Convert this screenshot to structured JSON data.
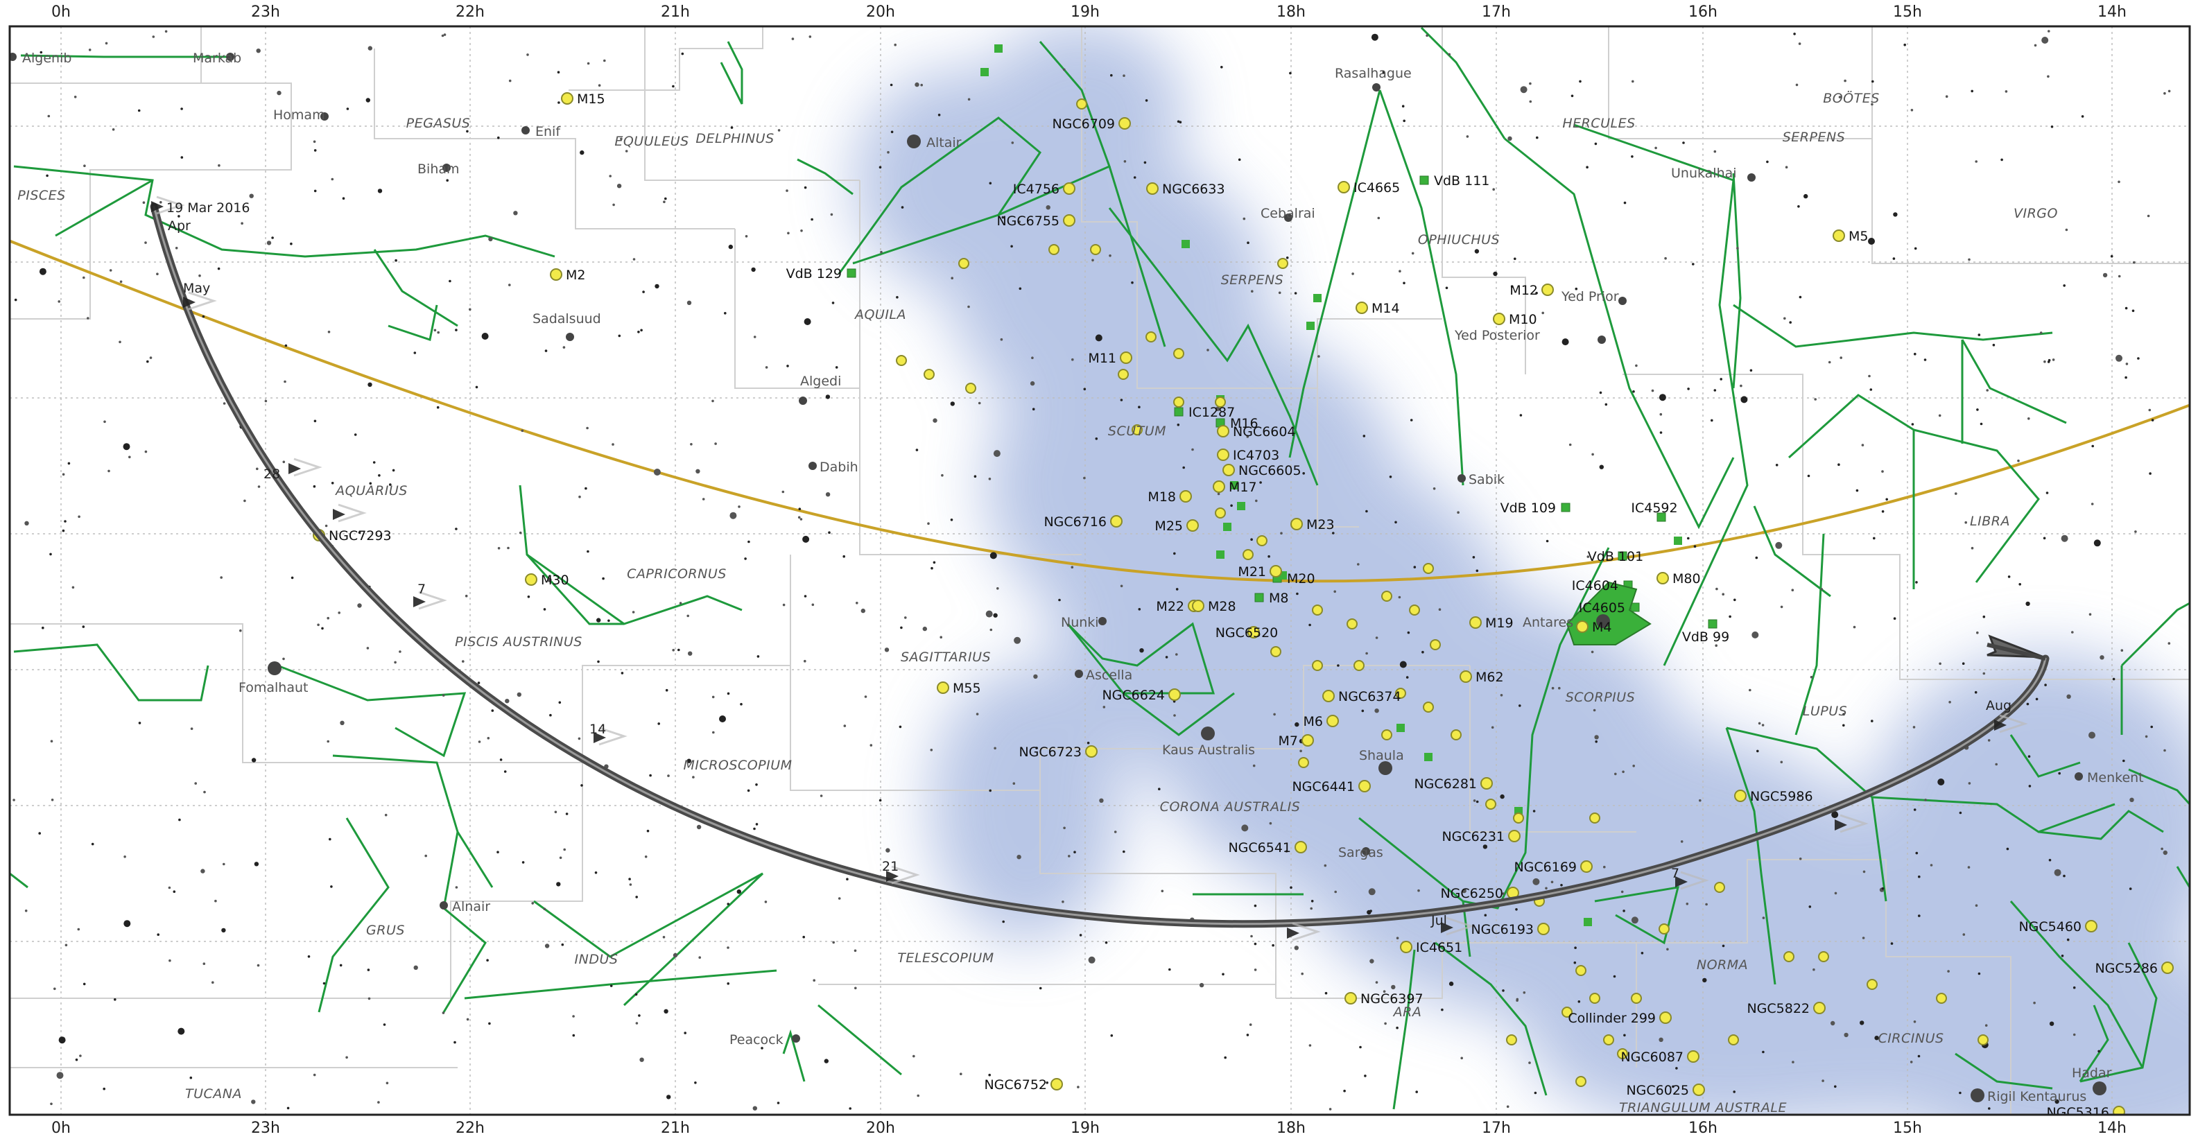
{
  "ra_axis": {
    "labels": [
      "0h",
      "23h",
      "22h",
      "21h",
      "20h",
      "19h",
      "18h",
      "17h",
      "16h",
      "15h",
      "14h"
    ]
  },
  "constellations": [
    "PISCES",
    "PEGASUS",
    "EQUULEUS",
    "DELPHINUS",
    "AQUILA",
    "SERPENS",
    "OPHIUCHUS",
    "HERCULES",
    "SERPENS",
    "BOÖTES",
    "VIRGO",
    "SCUTUM",
    "AQUARIUS",
    "CAPRICORNUS",
    "LIBRA",
    "PISCIS AUSTRINUS",
    "SAGITTARIUS",
    "SCORPIUS",
    "LUPUS",
    "MICROSCOPIUM",
    "CORONA AUSTRALIS",
    "GRUS",
    "INDUS",
    "TELESCOPIUM",
    "NORMA",
    "ARA",
    "CIRCINUS",
    "TUCANA",
    "TRIANGULUM AUSTRALE"
  ],
  "stars": [
    "Algenib",
    "Markab",
    "Homam",
    "Enif",
    "Biham",
    "Altair",
    "Rasalhague",
    "Unukalhai",
    "Cebalrai",
    "Yed Prior",
    "Yed Posterior",
    "Sadalsuud",
    "Algedi",
    "Dabih",
    "Sabik",
    "Antares",
    "Nunki",
    "Ascella",
    "Kaus Australis",
    "Fomalhaut",
    "Shaula",
    "Sargas",
    "Alnair",
    "Peacock",
    "Menkent",
    "Hadar",
    "Rigil Kentaurus"
  ],
  "dso": [
    "M15",
    "NGC6709",
    "IC4756",
    "NGC6633",
    "IC4665",
    "VdB 111",
    "M5",
    "NGC6755",
    "M2",
    "VdB 129",
    "M14",
    "M12",
    "M10",
    "M11",
    "IC1287",
    "NGC6604",
    "IC4703",
    "NGC6605",
    "M17",
    "M18",
    "M16",
    "NGC6716",
    "M25",
    "M23",
    "VdB 109",
    "IC4592",
    "NGC7293",
    "M30",
    "M21",
    "M20",
    "VdB 101",
    "IC4604",
    "M80",
    "M22",
    "M28",
    "M8",
    "IC4605",
    "M4",
    "VdB 99",
    "NGC6520",
    "M19",
    "M55",
    "M62",
    "NGC6624",
    "NGC6374",
    "M6",
    "M7",
    "NGC6723",
    "NGC6441",
    "NGC6281",
    "NGC5986",
    "NGC6231",
    "NGC6541",
    "NGC6169",
    "NGC6250",
    "NGC6193",
    "IC4651",
    "NGC5460",
    "NGC5286",
    "NGC6397",
    "NGC5822",
    "Collinder 299",
    "NGC6087",
    "NGC6752",
    "NGC6025",
    "NGC5316"
  ],
  "path": {
    "start_label": "19 Mar 2016",
    "month_labels": [
      "Apr",
      "May",
      "Jul",
      "Aug"
    ],
    "tick_labels": [
      "28",
      "7",
      "14",
      "21",
      "7"
    ]
  },
  "colors": {
    "ecliptic": "#c9a227",
    "constellation_line": "#1e9a3c",
    "boundary": "#c8c8c8",
    "grid": "#b8b8b8",
    "cluster_fill": "#f2ea4a",
    "nebula_fill": "#3ab03a",
    "path": "#3a3a3a",
    "milky_way": "#8fa6d6"
  }
}
